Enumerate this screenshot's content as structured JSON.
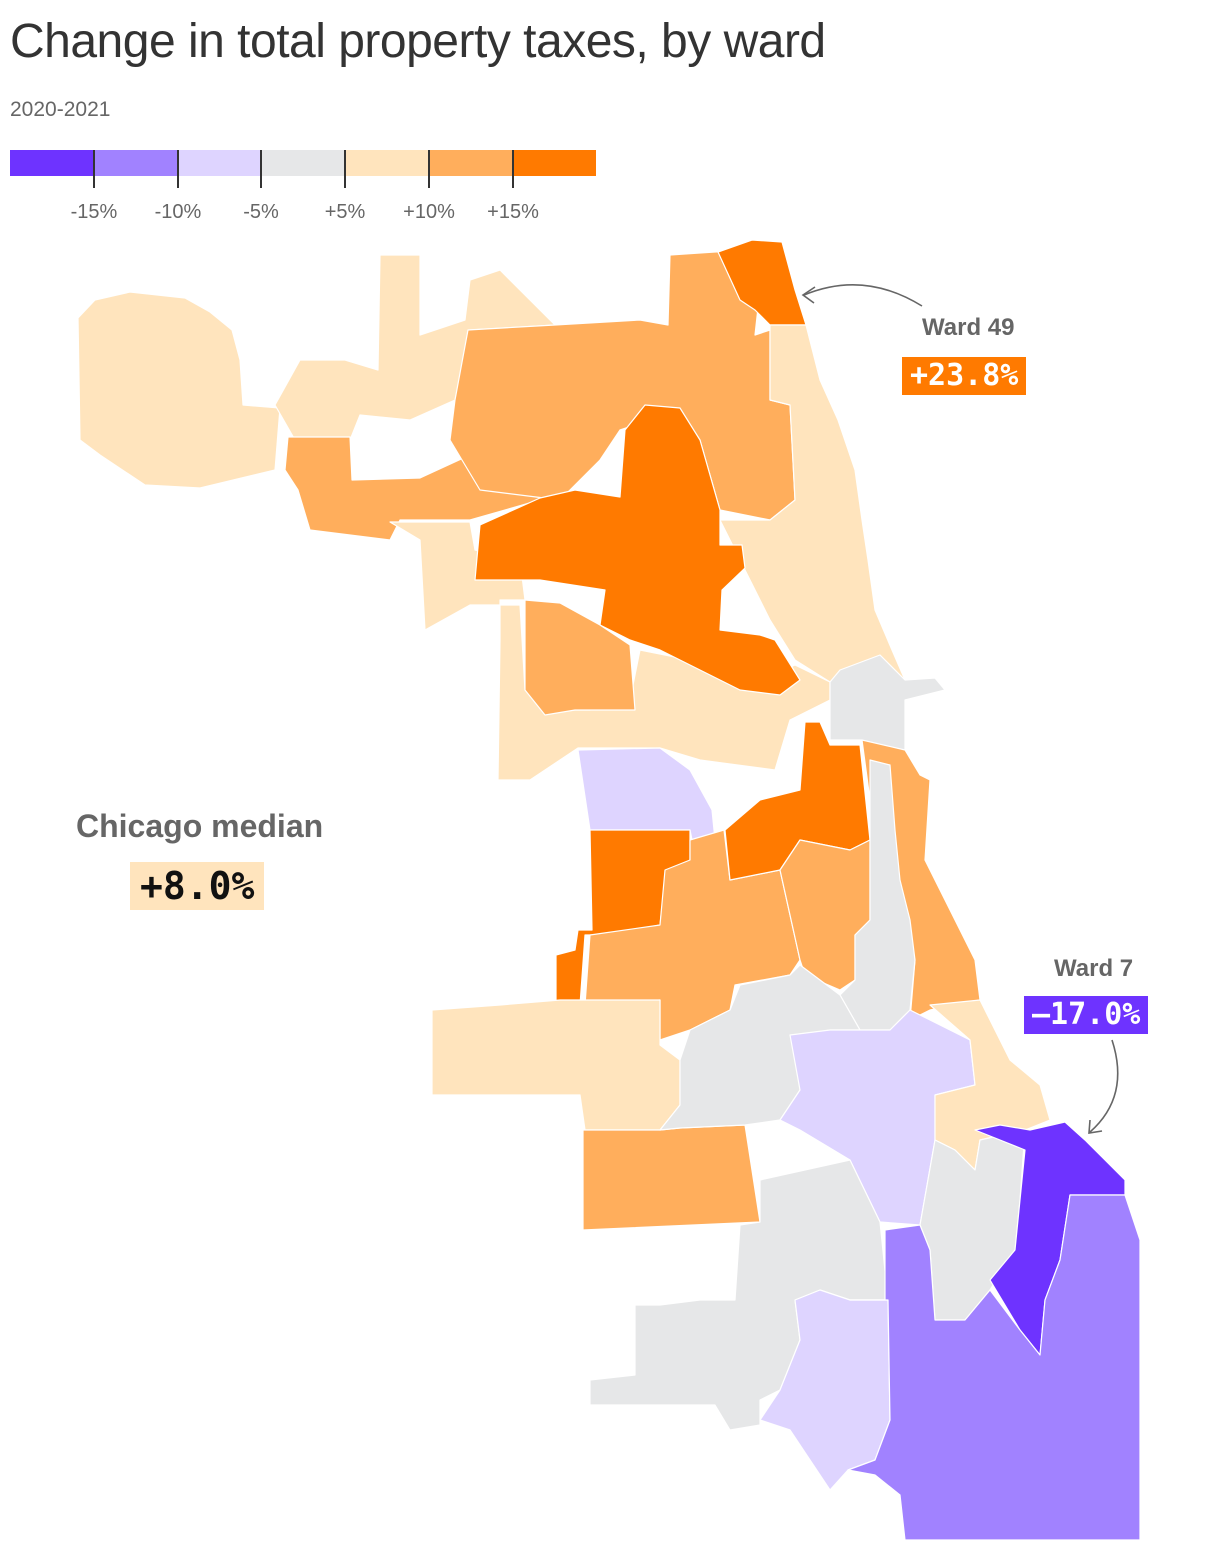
{
  "title": "Change in total property taxes, by ward",
  "subtitle": "2020-2021",
  "legend": {
    "colors": [
      "#6e33ff",
      "#a182ff",
      "#ded4ff",
      "#e6e7e8",
      "#ffe4bd",
      "#ffae5c",
      "#ff7a00"
    ],
    "labels": [
      "-15%",
      "-10%",
      "-5%",
      "+5%",
      "+10%",
      "+15%"
    ]
  },
  "callouts": {
    "ward49": {
      "name": "Ward 49",
      "value": "+23.8%",
      "color": "#ff7a00"
    },
    "ward7": {
      "name": "Ward 7",
      "value": "–17.0%",
      "color": "#6e33ff"
    }
  },
  "median": {
    "label": "Chicago median",
    "value": "+8.0%",
    "color": "#ffe4bd"
  }
}
